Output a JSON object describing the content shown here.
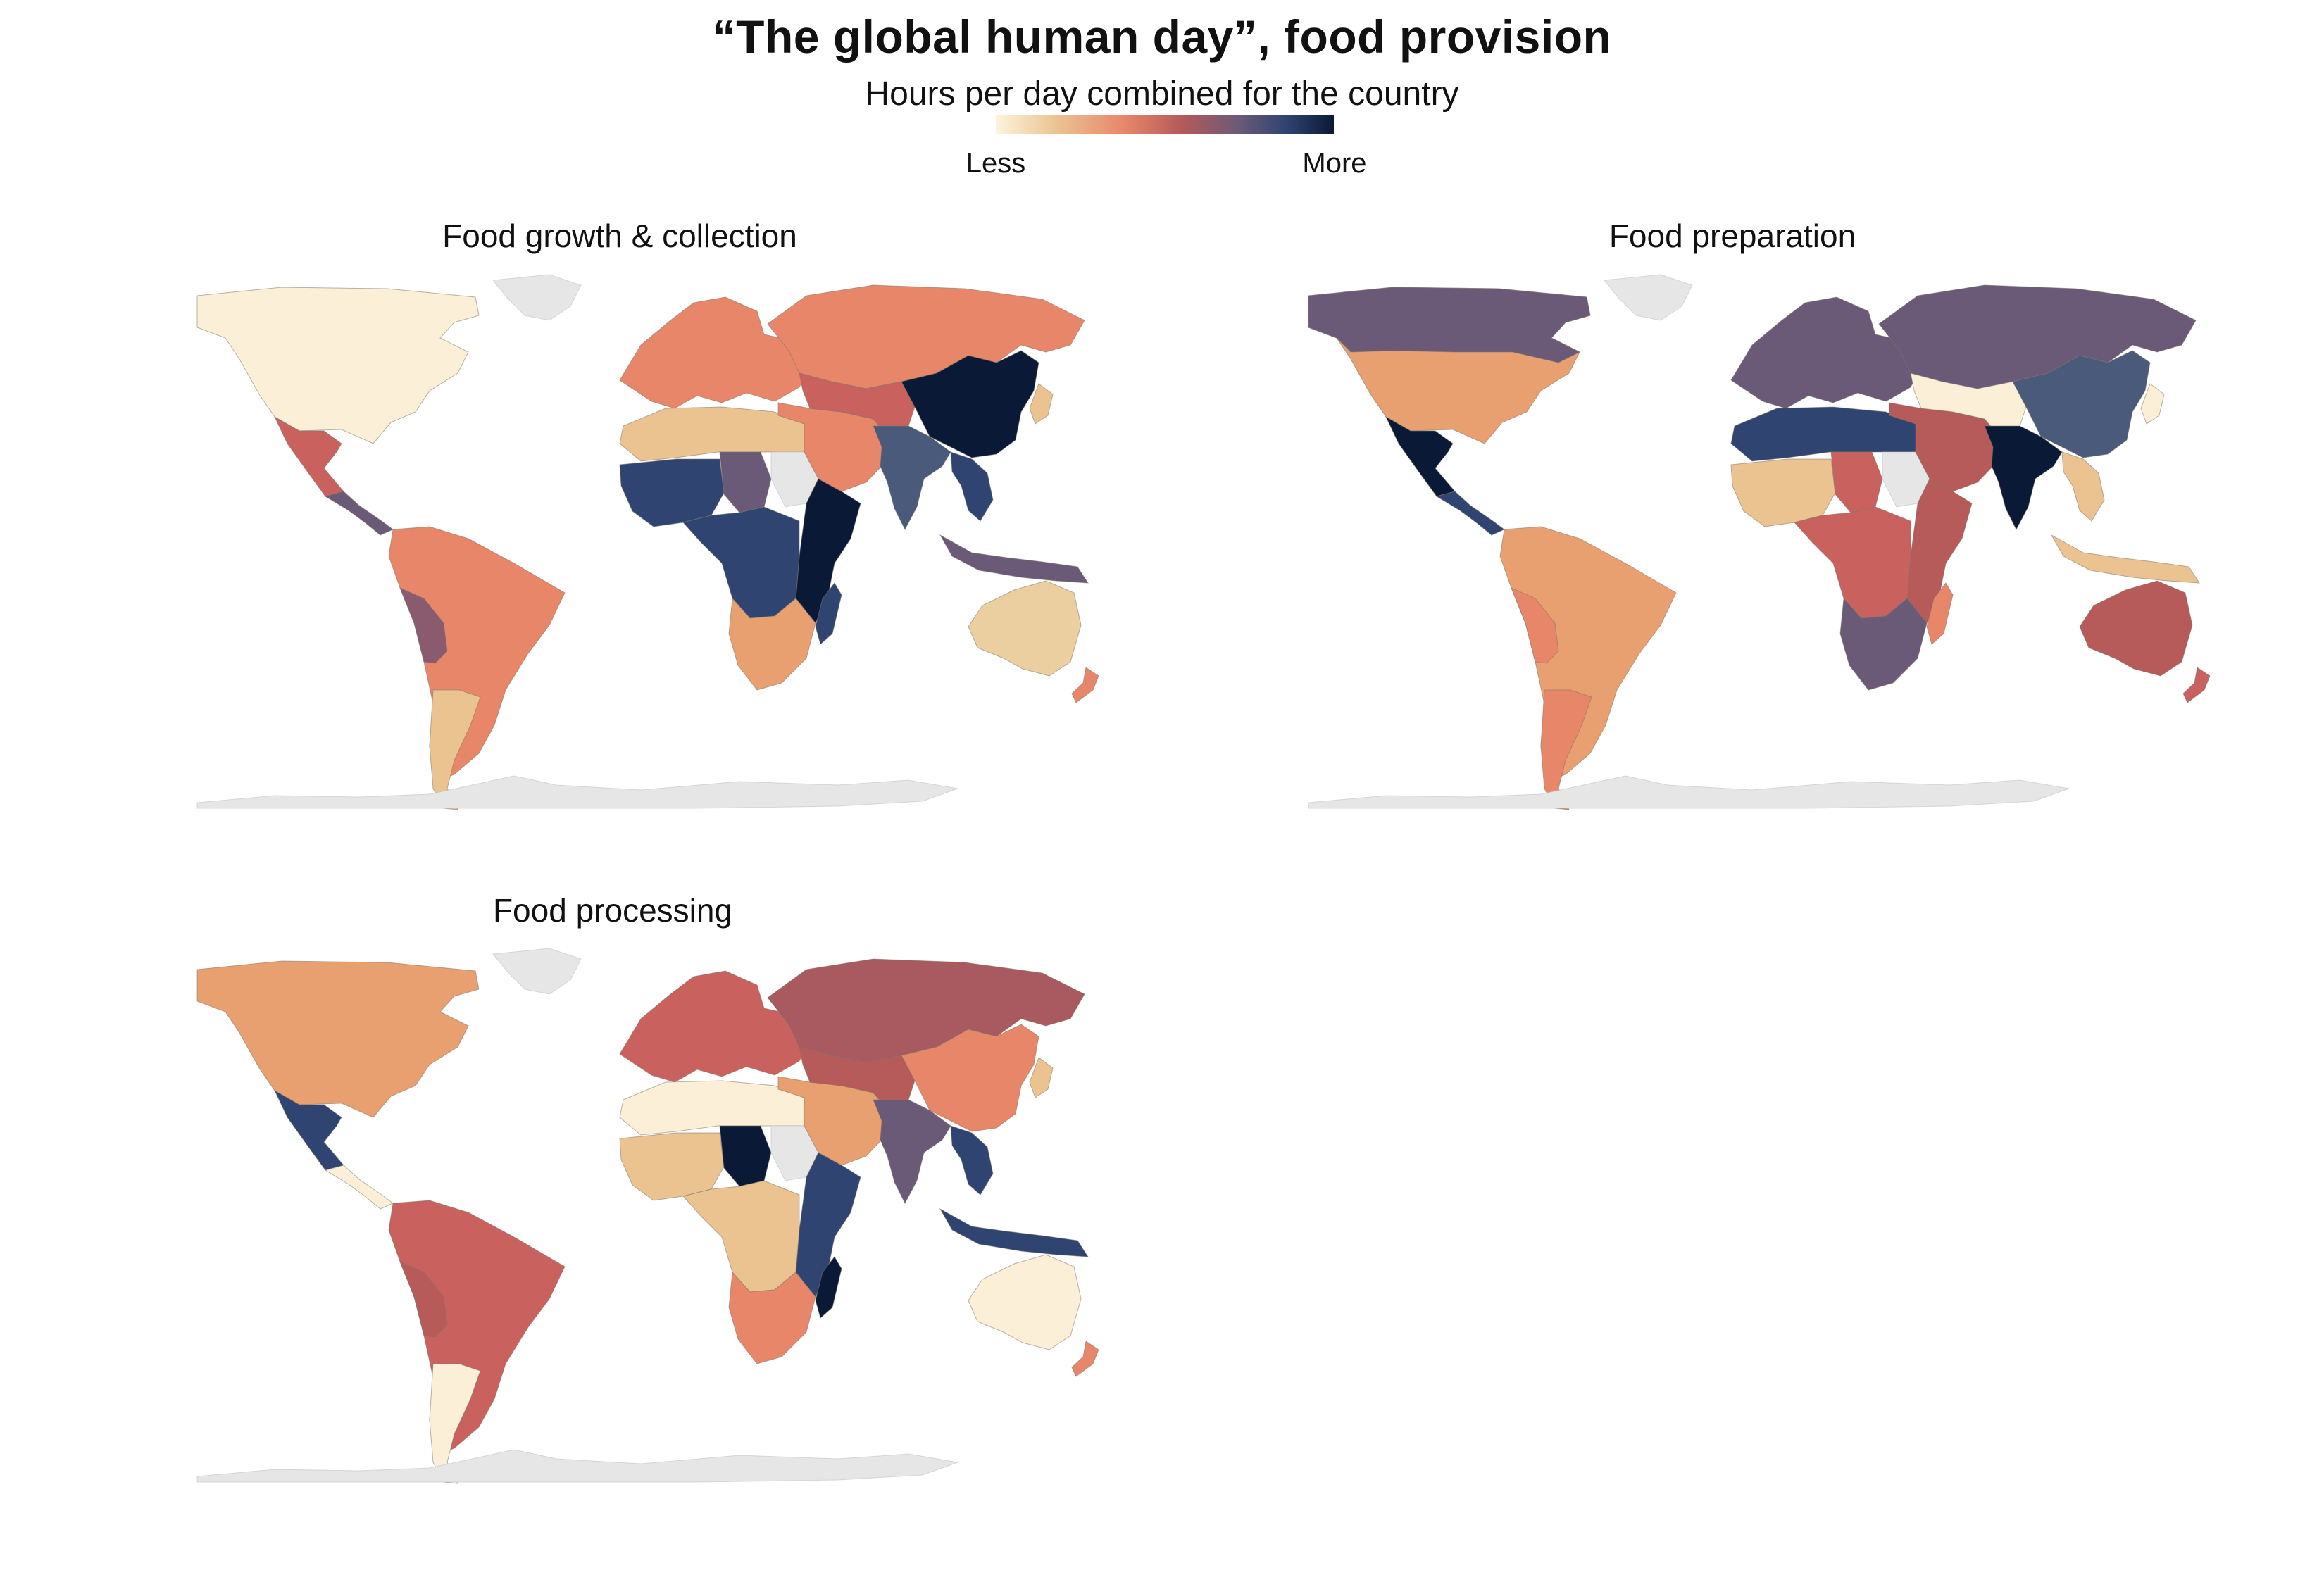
{
  "title": "“The global human day”, food provision",
  "legend": {
    "subtitle": "Hours per day combined for the country",
    "low_label": "Less",
    "high_label": "More",
    "gradient": [
      "#fdf3dd",
      "#ebc391",
      "#e8866a",
      "#b65a5a",
      "#6a5a78",
      "#2f4470",
      "#0a1a36"
    ],
    "no_data_color": "#e6e6e6"
  },
  "panels": [
    {
      "name": "Food growth & collection",
      "regions": {
        "north_america": "#fbefd8",
        "greenland": "#e6e6e6",
        "mexico": "#c9615e",
        "central_america": "#6a5a78",
        "south_america": "#e8866a",
        "andes": "#8a5a6e",
        "southern_cone": "#ebc391",
        "europe": "#e8866a",
        "russia": "#e8866a",
        "north_africa": "#ebc391",
        "west_africa": "#2f4470",
        "sahel": "#6a5a78",
        "east_africa": "#0a1a36",
        "central_africa": "#2f4470",
        "southern_africa": "#e8a070",
        "madagascar": "#2f4470",
        "middle_east": "#e8866a",
        "central_asia": "#c9615e",
        "china": "#0a1a36",
        "india": "#4a5a7a",
        "southeast_asia": "#2f4470",
        "indonesia": "#6a5a78",
        "japan": "#ebc391",
        "australia": "#ebcfa0",
        "new_zealand": "#e8866a",
        "sudan": "#e6e6e6",
        "antarctica": "#e6e6e6"
      }
    },
    {
      "name": "Food preparation",
      "regions": {
        "north_america": "#e8a070",
        "canada": "#6a5a78",
        "greenland": "#e6e6e6",
        "mexico": "#0a1a36",
        "central_america": "#2f4470",
        "south_america": "#e8a070",
        "andes": "#e8866a",
        "southern_cone": "#e8866a",
        "europe": "#6a5a78",
        "russia": "#6a5a78",
        "north_africa": "#2f4470",
        "west_africa": "#ebc391",
        "sahel": "#c9615e",
        "east_africa": "#b65a5a",
        "central_africa": "#c9615e",
        "southern_africa": "#6a5a78",
        "madagascar": "#e8866a",
        "middle_east": "#b65a5a",
        "central_asia": "#fbefd8",
        "china": "#4a5a7a",
        "india": "#0a1a36",
        "southeast_asia": "#ebc391",
        "indonesia": "#ebc391",
        "japan": "#fbefd8",
        "australia": "#b65a5a",
        "new_zealand": "#c9615e",
        "sudan": "#e6e6e6",
        "antarctica": "#e6e6e6"
      }
    },
    {
      "name": "Food processing",
      "regions": {
        "north_america": "#e8a070",
        "greenland": "#e6e6e6",
        "mexico": "#2f4470",
        "central_america": "#fbefd8",
        "south_america": "#c9615e",
        "andes": "#b65a5a",
        "southern_cone": "#fbefd8",
        "europe": "#c9615e",
        "russia": "#a85a60",
        "north_africa": "#fbefd8",
        "west_africa": "#ebc391",
        "sahel": "#0a1a36",
        "east_africa": "#2f4470",
        "central_africa": "#ebc391",
        "southern_africa": "#e8866a",
        "madagascar": "#0a1a36",
        "middle_east": "#e8a070",
        "central_asia": "#b65a5a",
        "china": "#e8866a",
        "india": "#6a5a78",
        "southeast_asia": "#2f4470",
        "indonesia": "#2f4470",
        "japan": "#ebc391",
        "australia": "#fbefd8",
        "new_zealand": "#e8866a",
        "sudan": "#e6e6e6",
        "antarctica": "#e6e6e6"
      }
    }
  ]
}
